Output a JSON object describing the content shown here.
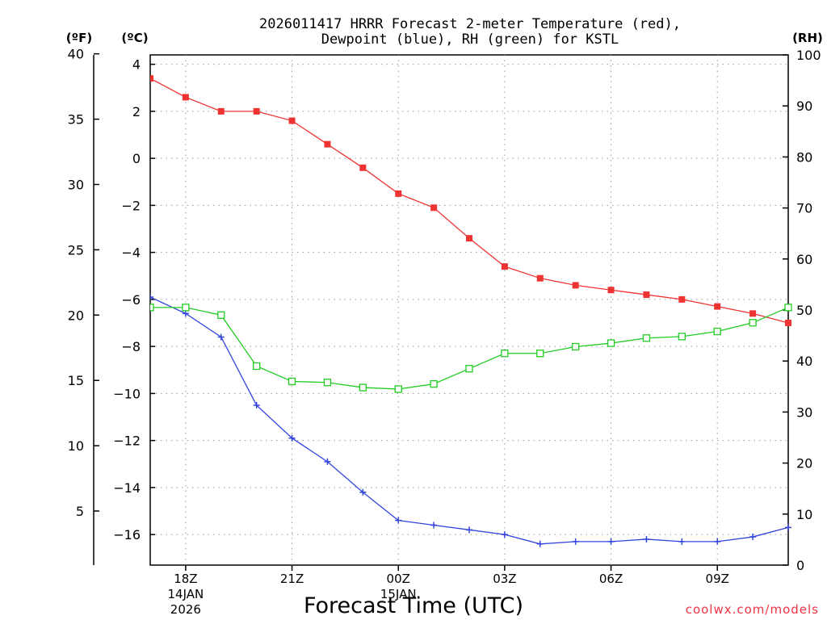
{
  "chart_data": {
    "type": "line",
    "title_line1": "2026011417 HRRR Forecast 2-meter Temperature (red),",
    "title_line2": "Dewpoint (blue), RH (green) for KSTL",
    "xlabel": "Forecast Time (UTC)",
    "credit": "coolwx.com/models",
    "unit_f": "(ºF)",
    "unit_c": "(ºC)",
    "unit_rh": "(RH)",
    "x_hours": [
      17,
      18,
      19,
      20,
      21,
      22,
      23,
      24,
      25,
      26,
      27,
      28,
      29,
      30,
      31,
      32,
      33,
      34,
      35
    ],
    "xlim": [
      17,
      35
    ],
    "ylim_c": [
      -17.3,
      4.4
    ],
    "ylim_rh": [
      0,
      100
    ],
    "ylim_f": [
      0.86,
      39.92
    ],
    "x_ticks": [
      {
        "hour": 18,
        "label": "18Z",
        "sub1": "14JAN",
        "sub2": "2026"
      },
      {
        "hour": 21,
        "label": "21Z",
        "sub1": "",
        "sub2": ""
      },
      {
        "hour": 24,
        "label": "00Z",
        "sub1": "15JAN",
        "sub2": ""
      },
      {
        "hour": 27,
        "label": "03Z",
        "sub1": "",
        "sub2": ""
      },
      {
        "hour": 30,
        "label": "06Z",
        "sub1": "",
        "sub2": ""
      },
      {
        "hour": 33,
        "label": "09Z",
        "sub1": "",
        "sub2": ""
      }
    ],
    "y_ticks_c": [
      {
        "value": 4,
        "label": "4"
      },
      {
        "value": 2,
        "label": "2"
      },
      {
        "value": 0,
        "label": "0"
      },
      {
        "value": -2,
        "label": "−2"
      },
      {
        "value": -4,
        "label": "−4"
      },
      {
        "value": -6,
        "label": "−6"
      },
      {
        "value": -8,
        "label": "−8"
      },
      {
        "value": -10,
        "label": "−10"
      },
      {
        "value": -12,
        "label": "−12"
      },
      {
        "value": -14,
        "label": "−14"
      },
      {
        "value": -16,
        "label": "−16"
      }
    ],
    "y_ticks_f": [
      {
        "value": 40,
        "label": "40"
      },
      {
        "value": 35,
        "label": "35"
      },
      {
        "value": 30,
        "label": "30"
      },
      {
        "value": 25,
        "label": "25"
      },
      {
        "value": 20,
        "label": "20"
      },
      {
        "value": 15,
        "label": "15"
      },
      {
        "value": 10,
        "label": "10"
      },
      {
        "value": 5,
        "label": "5"
      }
    ],
    "y_ticks_rh": [
      {
        "value": 100,
        "label": "100"
      },
      {
        "value": 90,
        "label": "90"
      },
      {
        "value": 80,
        "label": "80"
      },
      {
        "value": 70,
        "label": "70"
      },
      {
        "value": 60,
        "label": "60"
      },
      {
        "value": 50,
        "label": "50"
      },
      {
        "value": 40,
        "label": "40"
      },
      {
        "value": 30,
        "label": "30"
      },
      {
        "value": 20,
        "label": "20"
      },
      {
        "value": 10,
        "label": "10"
      },
      {
        "value": 0,
        "label": "0"
      }
    ],
    "series": [
      {
        "name": "Temperature",
        "axis": "c",
        "color": "#ee3333",
        "marker": "filled-square",
        "values": [
          3.4,
          2.6,
          2.0,
          2.0,
          1.6,
          0.6,
          -0.4,
          -1.5,
          -2.1,
          -3.4,
          -4.6,
          -5.1,
          -5.4,
          -5.6,
          -5.8,
          -6.0,
          -6.3,
          -6.6,
          -7.0
        ]
      },
      {
        "name": "Dewpoint",
        "axis": "c",
        "color": "#3344dd",
        "marker": "plus",
        "values": [
          -5.9,
          -6.6,
          -7.6,
          -10.5,
          -11.9,
          -12.9,
          -14.2,
          -15.4,
          -15.6,
          -15.8,
          -16.0,
          -16.4,
          -16.3,
          -16.3,
          -16.2,
          -16.3,
          -16.3,
          -16.1,
          -15.7
        ]
      },
      {
        "name": "RH",
        "axis": "rh",
        "color": "#22cc22",
        "marker": "open-square",
        "values": [
          50.5,
          50.5,
          49.0,
          39.0,
          36.0,
          35.8,
          34.8,
          34.5,
          35.5,
          38.5,
          41.5,
          41.5,
          42.8,
          43.5,
          44.5,
          44.8,
          45.8,
          47.5,
          50.5
        ]
      }
    ]
  }
}
